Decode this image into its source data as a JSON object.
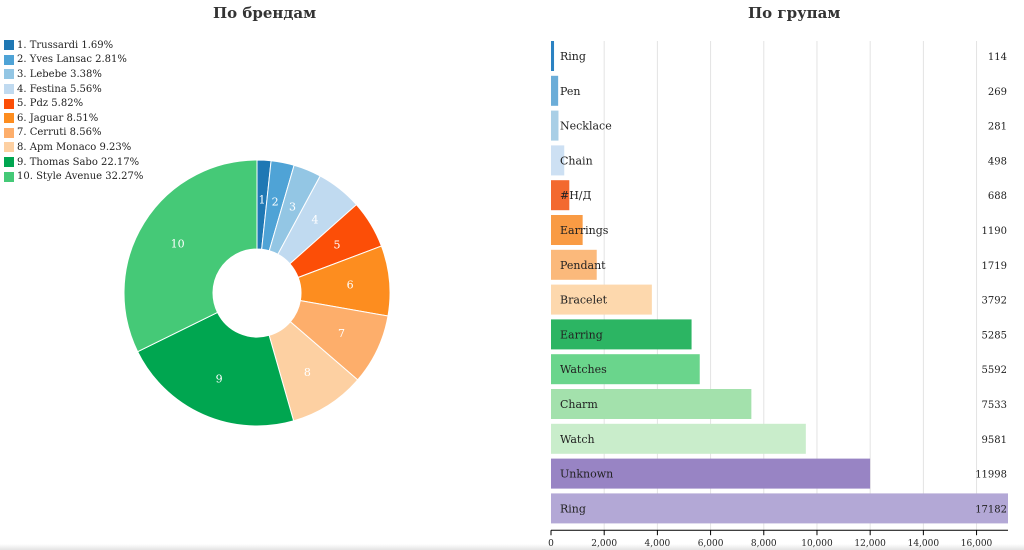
{
  "chart_data": [
    {
      "type": "pie",
      "title": "По брендам",
      "legend_position": "top-left",
      "slices": [
        {
          "label": "1",
          "legend": "1. Trussardi 1.69%",
          "value": 1.69,
          "color": "#1f78b4"
        },
        {
          "label": "2",
          "legend": "2. Yves Lansac 2.81%",
          "value": 2.81,
          "color": "#4fa3d6"
        },
        {
          "label": "3",
          "legend": "3. Lebebe 3.38%",
          "value": 3.38,
          "color": "#93c6e4"
        },
        {
          "label": "4",
          "legend": "4. Festina 5.56%",
          "value": 5.56,
          "color": "#c0daf0"
        },
        {
          "label": "5",
          "legend": "5. Pdz 5.82%",
          "value": 5.82,
          "color": "#fc4e07"
        },
        {
          "label": "6",
          "legend": "6. Jaguar 8.51%",
          "value": 8.51,
          "color": "#fd8d1f"
        },
        {
          "label": "7",
          "legend": "7. Cerruti 8.56%",
          "value": 8.56,
          "color": "#fdae6b"
        },
        {
          "label": "8",
          "legend": "8. Apm Monaco 9.23%",
          "value": 9.23,
          "color": "#fdd0a2"
        },
        {
          "label": "9",
          "legend": "9. Thomas Sabo 22.17%",
          "value": 22.17,
          "color": "#00a650"
        },
        {
          "label": "10",
          "legend": "10. Style Avenue 32.27%",
          "value": 32.27,
          "color": "#45c977"
        }
      ]
    },
    {
      "type": "bar",
      "orientation": "horizontal",
      "title": "По групам",
      "xlim": [
        0,
        17182
      ],
      "xticks": [
        0,
        2000,
        4000,
        6000,
        8000,
        10000,
        12000,
        14000,
        16000
      ],
      "xtick_labels": [
        "0",
        "2,000",
        "4,000",
        "6,000",
        "8,000",
        "10,000",
        "12,000",
        "14,000",
        "16,000"
      ],
      "grid": true,
      "bars": [
        {
          "label": "Ring",
          "value": 114,
          "value_label": "114",
          "color": "#2b82c2"
        },
        {
          "label": "Pen",
          "value": 269,
          "value_label": "269",
          "color": "#6badd8"
        },
        {
          "label": "Necklace",
          "value": 281,
          "value_label": "281",
          "color": "#a9cfe6"
        },
        {
          "label": "Chain",
          "value": 498,
          "value_label": "498",
          "color": "#cde0f3"
        },
        {
          "label": "#Н/Д",
          "value": 688,
          "value_label": "688",
          "color": "#f3692f"
        },
        {
          "label": "Earrings",
          "value": 1190,
          "value_label": "1190",
          "color": "#f99b44"
        },
        {
          "label": "Pendant",
          "value": 1719,
          "value_label": "1719",
          "color": "#fbb97b"
        },
        {
          "label": "Bracelet",
          "value": 3792,
          "value_label": "3792",
          "color": "#fdd8ad"
        },
        {
          "label": "Earring",
          "value": 5285,
          "value_label": "5285",
          "color": "#2cb563"
        },
        {
          "label": "Watches",
          "value": 5592,
          "value_label": "5592",
          "color": "#6ad58c"
        },
        {
          "label": "Charm",
          "value": 7533,
          "value_label": "7533",
          "color": "#a3e1ac"
        },
        {
          "label": "Watch",
          "value": 9581,
          "value_label": "9581",
          "color": "#c9edcb"
        },
        {
          "label": "Unknown",
          "value": 11998,
          "value_label": "11998",
          "color": "#9884c4"
        },
        {
          "label": "Ring",
          "value": 17182,
          "value_label": "17182",
          "color": "#b3a8d6"
        }
      ]
    }
  ]
}
